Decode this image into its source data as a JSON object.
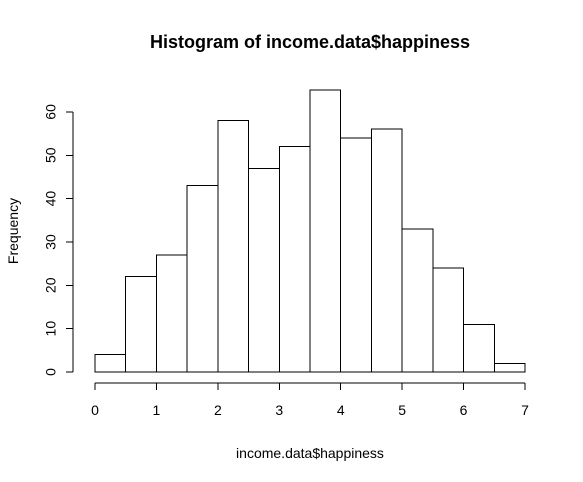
{
  "chart_data": {
    "type": "bar",
    "title": "Histogram of income.data$happiness",
    "xlabel": "income.data$happiness",
    "ylabel": "Frequency",
    "bin_edges": [
      0,
      0.5,
      1,
      1.5,
      2,
      2.5,
      3,
      3.5,
      4,
      4.5,
      5,
      5.5,
      6,
      6.5,
      7
    ],
    "values": [
      4,
      22,
      27,
      43,
      58,
      47,
      52,
      65,
      54,
      56,
      33,
      24,
      11,
      2
    ],
    "xlim": [
      0,
      7
    ],
    "ylim": [
      0,
      65
    ],
    "x_ticks": [
      "0",
      "1",
      "2",
      "3",
      "4",
      "5",
      "6",
      "7"
    ],
    "y_ticks": [
      "0",
      "10",
      "20",
      "30",
      "40",
      "50",
      "60"
    ],
    "grid": false,
    "colors": {
      "bar_fill": "#ffffff",
      "bar_stroke": "#000000"
    }
  }
}
